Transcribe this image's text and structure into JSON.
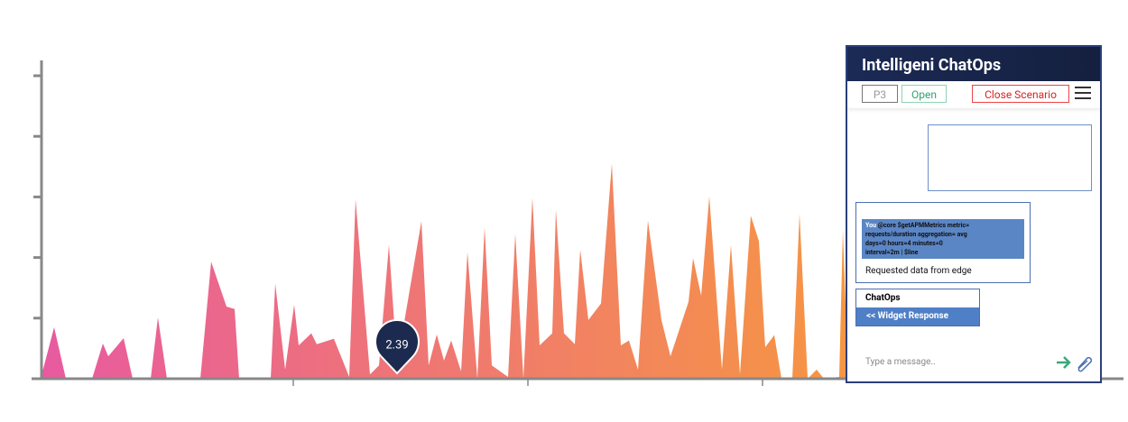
{
  "chart_data": {
    "type": "area",
    "x": [
      0,
      1.5,
      2.8,
      5.7,
      6.9,
      7.5,
      9.2,
      10.2,
      12.2,
      13,
      14,
      17.7,
      18.9,
      20.6,
      21.5,
      22,
      25.5,
      26,
      27.1,
      28.1,
      28.6,
      30,
      30.6,
      32.5,
      34.2,
      34.9,
      36.5,
      37.5,
      38.6,
      39.5,
      42.2,
      43,
      43.9,
      44.7,
      45.5,
      46.6,
      47.3,
      48.4,
      49.2,
      50,
      51.8,
      52.6,
      53.5,
      54.5,
      55.3,
      56.7,
      57.1,
      58,
      59.2,
      59.8,
      60.7,
      62.1,
      63.3,
      64.3,
      65.2,
      66.2,
      67.3,
      68.8,
      69.8,
      71.8,
      72.3,
      73.2,
      74.1,
      75.5,
      76.5,
      77.5,
      78.7,
      79.6,
      80.3,
      81.3,
      82.1,
      83.3,
      84.1,
      85,
      86,
      86.8,
      88.5,
      88.9,
      89.5
    ],
    "values": [
      0,
      8.5,
      0,
      0,
      5.8,
      3.7,
      6.7,
      0,
      0,
      10.1,
      0,
      0,
      19.3,
      11.9,
      11.5,
      0,
      0,
      15.7,
      1.5,
      12.2,
      5.5,
      7.5,
      5.7,
      6.6,
      0.3,
      29.6,
      0.7,
      2.2,
      22.1,
      2.39,
      26,
      2.2,
      7.3,
      3,
      6.3,
      1.2,
      20.9,
      0,
      25,
      2.2,
      0.3,
      23.9,
      0,
      29.9,
      5.5,
      7.5,
      27.9,
      7.5,
      5.7,
      21.3,
      9.7,
      12.4,
      35.5,
      5.5,
      6.3,
      1.5,
      26.1,
      9.7,
      3.7,
      12.7,
      19.9,
      13.7,
      30.1,
      1.5,
      22.1,
      0.7,
      26.9,
      22.7,
      5.2,
      7.2,
      0,
      0,
      27.2,
      0,
      1.5,
      0,
      0.3,
      24.5,
      0
    ],
    "xlim": [
      0,
      120
    ],
    "ylim": [
      0,
      50
    ],
    "xticks": [
      28,
      54,
      80
    ],
    "yticks": [
      0,
      10,
      20,
      30,
      40,
      50
    ],
    "gradient": [
      "#e85aa0",
      "#f79a3c"
    ],
    "tooltip_color": "#1b2a4e"
  },
  "chat_panel": {
    "title": "Intelligeni ChatOps",
    "priority": "P3",
    "status": "Open",
    "close_button": "Close Scenario",
    "user": "You",
    "command_lines": [
      "@core $getAPMMetrics metric=",
      "requests/duration aggregation= avg",
      "days=0 hours=4 minutes=0",
      "interval=2m | $line"
    ],
    "reply": "Requested data from edge",
    "bot_name": "ChatOps",
    "widget_response": "<< Widget Response",
    "placeholder": "Type a message.."
  }
}
